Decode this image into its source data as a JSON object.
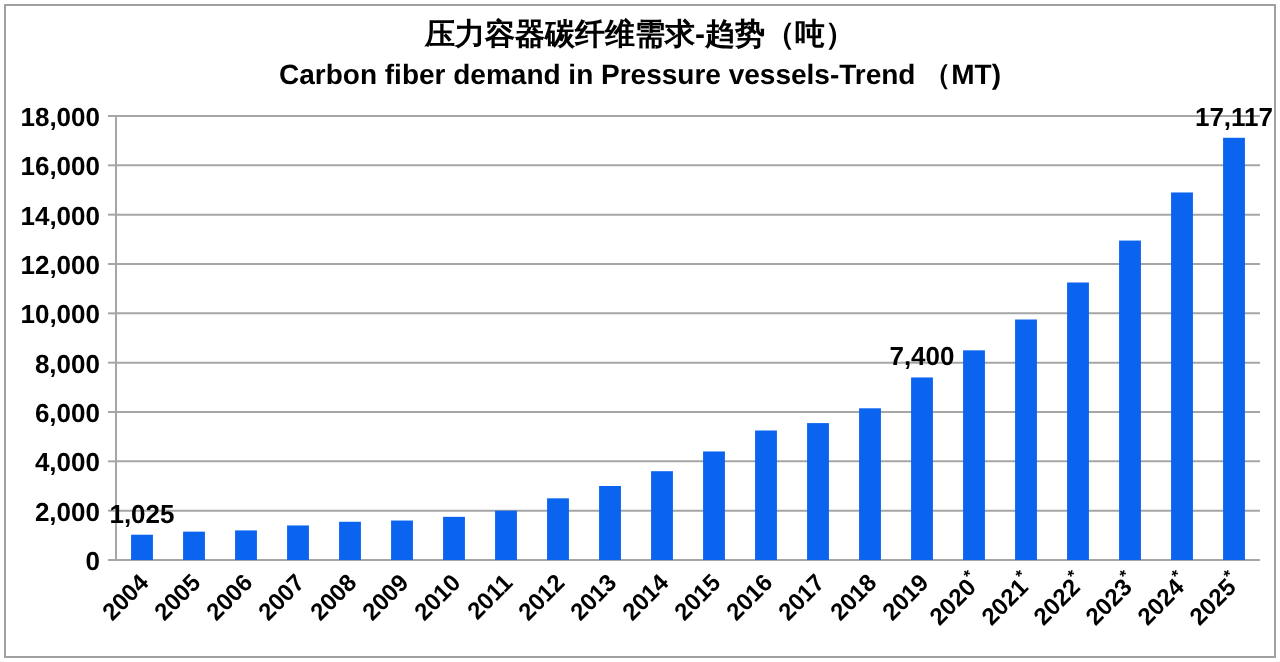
{
  "chart_data": {
    "type": "bar",
    "title": "压力容器碳纤维需求-趋势（吨）",
    "subtitle": "Carbon fiber demand in Pressure vessels-Trend （MT)",
    "categories": [
      "2004",
      "2005",
      "2006",
      "2007",
      "2008",
      "2009",
      "2010",
      "2011",
      "2012",
      "2013",
      "2014",
      "2015",
      "2016",
      "2017",
      "2018",
      "2019",
      "2020$^{*}$",
      "2021$^{*}$",
      "2022$^{*}$",
      "2023$^{*}$",
      "2024$^{*}$",
      "2025$^{*}$"
    ],
    "values": [
      1025,
      1150,
      1200,
      1400,
      1550,
      1600,
      1750,
      2000,
      2500,
      3000,
      3600,
      4400,
      5250,
      5550,
      6150,
      7400,
      8500,
      9750,
      11250,
      12950,
      14900,
      17117
    ],
    "value_labels": [
      "1,025",
      null,
      null,
      null,
      null,
      null,
      null,
      null,
      null,
      null,
      null,
      null,
      null,
      null,
      null,
      "7,400",
      null,
      null,
      null,
      null,
      null,
      "17,117"
    ],
    "color": "#0a64f0",
    "ylim": [
      0,
      18000
    ],
    "yticks": [
      {
        "value": 0,
        "label": "0"
      },
      {
        "value": 2000,
        "label": "2,000"
      },
      {
        "value": 4000,
        "label": "4,000"
      },
      {
        "value": 6000,
        "label": "6,000"
      },
      {
        "value": 8000,
        "label": "8,000"
      },
      {
        "value": 10000,
        "label": "10,000"
      },
      {
        "value": 12000,
        "label": "12,000"
      },
      {
        "value": 14000,
        "label": "14,000"
      },
      {
        "value": 16000,
        "label": "16,000"
      },
      {
        "value": 18000,
        "label": "18,000"
      }
    ],
    "grid": "y"
  }
}
